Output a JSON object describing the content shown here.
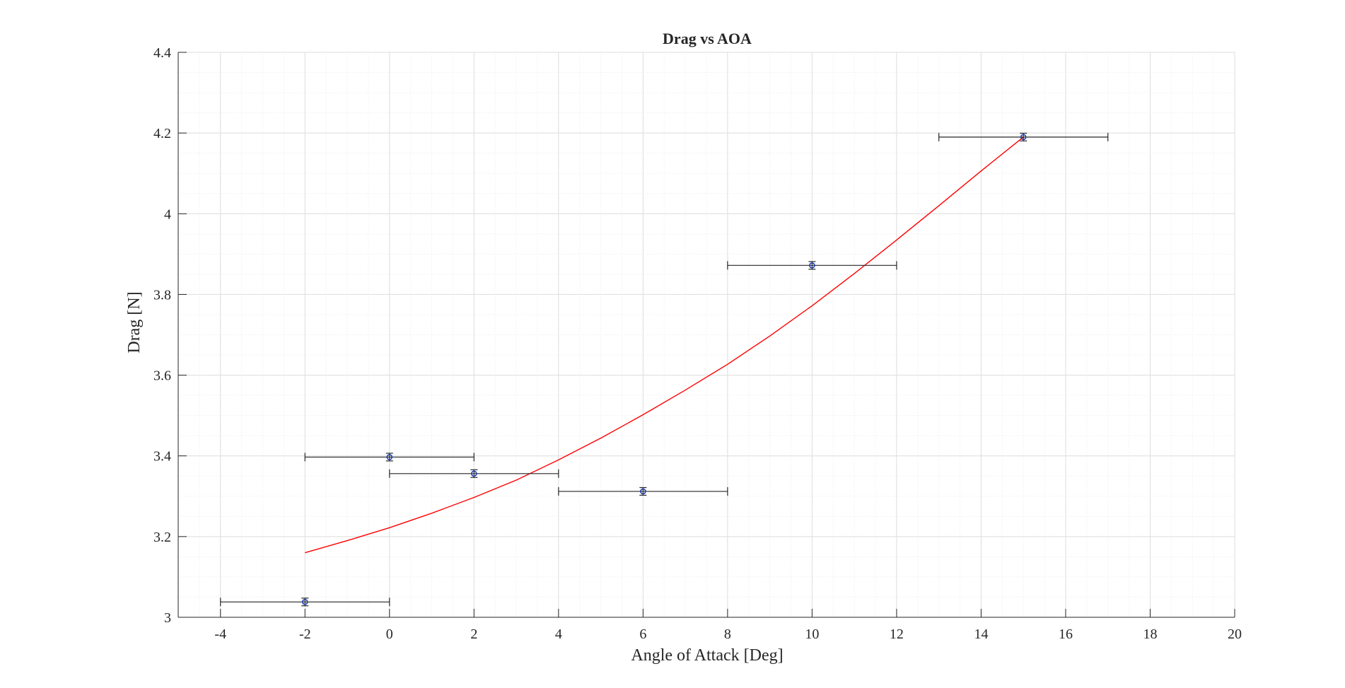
{
  "chart_data": {
    "type": "scatter",
    "title": "Drag vs AOA",
    "xlabel": "Angle of Attack [Deg]",
    "ylabel": "Drag [N]",
    "xlim": [
      -5,
      20
    ],
    "ylim": [
      3.0,
      4.4
    ],
    "xticks": [
      "-4",
      "-2",
      "0",
      "2",
      "4",
      "6",
      "8",
      "10",
      "12",
      "14",
      "16",
      "18",
      "20"
    ],
    "yticks": [
      "3",
      "3.2",
      "3.4",
      "3.6",
      "3.8",
      "4",
      "4.2",
      "4.4"
    ],
    "grid": true,
    "minor_grid": true,
    "series": [
      {
        "kind": "errorbar",
        "marker": "circle",
        "marker_color": "#1f3fa8",
        "bar_color": "#262626",
        "points": [
          {
            "x": -2,
            "y": 3.038,
            "xerr": 2,
            "yerr": 0.006
          },
          {
            "x": 0,
            "y": 3.397,
            "xerr": 2,
            "yerr": 0.006
          },
          {
            "x": 2,
            "y": 3.356,
            "xerr": 2,
            "yerr": 0.006
          },
          {
            "x": 6,
            "y": 3.312,
            "xerr": 2,
            "yerr": 0.006
          },
          {
            "x": 10,
            "y": 3.872,
            "xerr": 2,
            "yerr": 0.006
          },
          {
            "x": 15,
            "y": 4.19,
            "xerr": 2,
            "yerr": 0.006
          }
        ]
      },
      {
        "kind": "line",
        "color": "#ff0000",
        "x": [
          -2,
          -1,
          0,
          1,
          2,
          3,
          4,
          5,
          6,
          7,
          8,
          9,
          10,
          11,
          12,
          13,
          14,
          15
        ],
        "y": [
          3.16,
          3.19,
          3.222,
          3.258,
          3.297,
          3.34,
          3.39,
          3.444,
          3.502,
          3.563,
          3.627,
          3.697,
          3.772,
          3.852,
          3.935,
          4.02,
          4.106,
          4.19
        ]
      }
    ]
  },
  "colors": {
    "axis": "#262626",
    "grid_major": "#dedede",
    "grid_minor": "#ececec"
  }
}
